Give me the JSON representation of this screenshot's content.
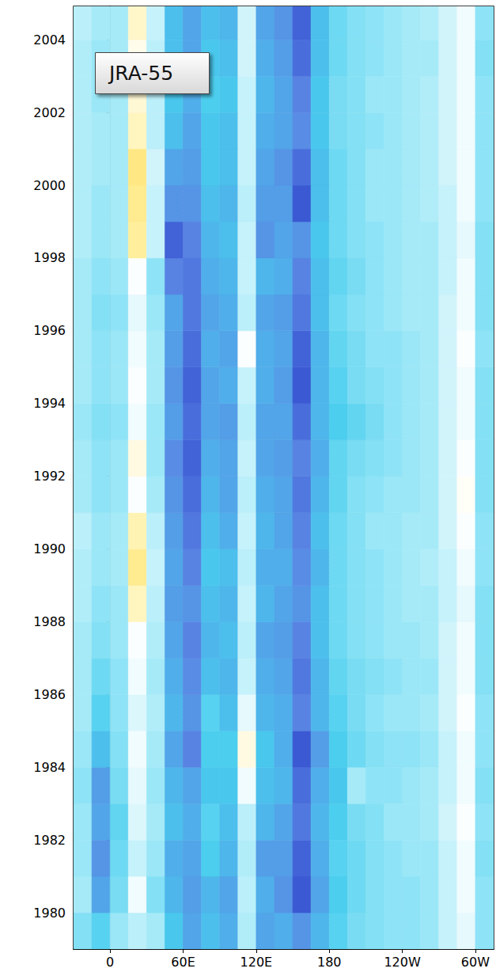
{
  "chart_data": {
    "type": "heatmap",
    "title": "JRA-55",
    "x_bins": [
      -30,
      -15,
      0,
      15,
      30,
      45,
      60,
      75,
      90,
      105,
      120,
      135,
      150,
      165,
      180,
      195,
      210,
      225,
      240,
      255,
      270,
      285,
      300,
      315
    ],
    "y_bins": [
      1979,
      1980,
      1981,
      1982,
      1983,
      1984,
      1985,
      1986,
      1987,
      1988,
      1989,
      1990,
      1991,
      1992,
      1993,
      1994,
      1995,
      1996,
      1997,
      1998,
      1999,
      2000,
      2001,
      2002,
      2003,
      2004,
      2005
    ],
    "cells": [
      [
        -0.8,
        -1.2,
        -0.6,
        -0.3,
        -0.5,
        -1.4,
        -1.8,
        -1.5,
        -1.7,
        -0.4,
        -1.8,
        -1.7,
        -2.0,
        -1.6,
        -1.2,
        -0.9,
        -0.8,
        -0.7,
        -0.7,
        -0.6,
        -0.2,
        0.1,
        -0.7
      ],
      [
        -0.5,
        -1.8,
        -0.9,
        0.2,
        -0.8,
        -1.6,
        -1.9,
        -1.6,
        -1.8,
        -0.3,
        -1.7,
        -2.0,
        -2.6,
        -1.8,
        -1.3,
        -1.0,
        -0.8,
        -0.7,
        -0.7,
        -0.6,
        -0.2,
        0.2,
        -0.7
      ],
      [
        -0.6,
        -2.0,
        -1.0,
        -0.2,
        -0.6,
        -1.7,
        -1.8,
        -1.3,
        -1.6,
        -0.4,
        -1.9,
        -1.9,
        -2.5,
        -1.7,
        -1.2,
        -1.0,
        -0.8,
        -0.7,
        -0.6,
        -0.6,
        -0.2,
        0.2,
        -0.8
      ],
      [
        -0.6,
        -1.8,
        -1.1,
        0.0,
        -0.5,
        -1.5,
        -1.7,
        -1.2,
        -1.5,
        -0.3,
        -1.6,
        -1.8,
        -2.3,
        -1.6,
        -1.3,
        -0.9,
        -0.8,
        -0.6,
        -0.6,
        -0.5,
        -0.1,
        0.3,
        -0.7
      ],
      [
        -0.7,
        -1.9,
        -0.9,
        0.1,
        -0.6,
        -1.6,
        -1.8,
        -1.4,
        -1.4,
        0.2,
        -1.5,
        -1.6,
        -2.4,
        -1.7,
        -1.4,
        -0.5,
        -0.7,
        -0.7,
        -0.6,
        -0.5,
        -0.2,
        0.2,
        -0.8
      ],
      [
        -0.6,
        -1.5,
        -0.8,
        0.2,
        -0.5,
        -1.8,
        -2.2,
        -1.3,
        -1.3,
        0.6,
        -1.4,
        -1.7,
        -2.6,
        -1.9,
        -1.3,
        -1.0,
        -0.8,
        -0.7,
        -0.7,
        -0.6,
        -0.2,
        0.2,
        -0.7
      ],
      [
        -0.5,
        -1.2,
        -0.7,
        0.0,
        -0.4,
        -1.6,
        -2.0,
        -1.2,
        -1.5,
        0.1,
        -1.6,
        -1.7,
        -2.2,
        -1.6,
        -1.2,
        -0.9,
        -0.7,
        -0.6,
        -0.6,
        -0.5,
        -0.1,
        0.3,
        -0.7
      ],
      [
        -0.5,
        -1.0,
        -0.7,
        0.2,
        -0.5,
        -1.7,
        -2.1,
        -1.5,
        -1.6,
        -0.2,
        -1.7,
        -1.8,
        -2.3,
        -1.6,
        -1.1,
        -0.9,
        -0.8,
        -0.7,
        -0.6,
        -0.6,
        -0.1,
        0.2,
        -0.8
      ],
      [
        -0.5,
        -0.8,
        -0.6,
        0.3,
        -0.4,
        -1.8,
        -2.2,
        -1.6,
        -1.5,
        -0.3,
        -1.8,
        -1.9,
        -2.2,
        -1.5,
        -1.0,
        -0.8,
        -0.7,
        -0.6,
        -0.6,
        -0.5,
        -0.1,
        0.2,
        -0.8
      ],
      [
        -0.4,
        -0.7,
        -0.6,
        0.9,
        -0.3,
        -1.9,
        -2.0,
        -1.5,
        -1.6,
        -0.2,
        -1.6,
        -1.8,
        -2.0,
        -1.5,
        -1.0,
        -0.8,
        -0.7,
        -0.6,
        -0.5,
        -0.5,
        -0.2,
        0.1,
        -0.8
      ],
      [
        -0.4,
        -0.6,
        -0.5,
        1.3,
        -0.2,
        -1.8,
        -2.2,
        -1.4,
        -1.5,
        -0.3,
        -1.7,
        -1.7,
        -2.1,
        -1.6,
        -1.0,
        -0.8,
        -0.7,
        -0.6,
        -0.5,
        -0.4,
        -0.2,
        0.2,
        -0.7
      ],
      [
        -0.3,
        -0.6,
        -0.5,
        1.0,
        -0.3,
        -1.9,
        -2.3,
        -1.5,
        -1.7,
        -0.2,
        -1.6,
        -1.8,
        -2.2,
        -1.5,
        -1.0,
        -0.8,
        -0.6,
        -0.6,
        -0.5,
        -0.5,
        -0.1,
        0.3,
        -0.7
      ],
      [
        -0.5,
        -0.7,
        -0.6,
        0.3,
        -0.5,
        -2.0,
        -2.4,
        -1.6,
        -1.8,
        -0.3,
        -1.7,
        -1.8,
        -2.3,
        -1.6,
        -1.1,
        -0.8,
        -0.7,
        -0.6,
        -0.6,
        -0.5,
        -0.1,
        0.4,
        -0.8
      ],
      [
        -0.5,
        -0.7,
        -0.6,
        0.6,
        -0.6,
        -2.1,
        -2.5,
        -1.7,
        -1.8,
        -0.2,
        -1.8,
        -1.9,
        -2.2,
        -1.7,
        -1.1,
        -0.9,
        -0.8,
        -0.7,
        -0.6,
        -0.5,
        -0.1,
        0.3,
        -0.8
      ],
      [
        -0.6,
        -0.8,
        -0.7,
        0.2,
        -0.6,
        -1.9,
        -2.4,
        -1.8,
        -1.9,
        -0.3,
        -1.8,
        -1.8,
        -2.4,
        -1.6,
        -1.3,
        -1.1,
        -0.9,
        -0.7,
        -0.6,
        -0.5,
        -0.1,
        0.2,
        -0.8
      ],
      [
        -0.5,
        -0.7,
        -0.6,
        0.3,
        -0.5,
        -2.0,
        -2.5,
        -1.8,
        -1.7,
        -0.2,
        -1.7,
        -1.9,
        -2.6,
        -1.6,
        -1.2,
        -0.9,
        -0.8,
        -0.7,
        -0.6,
        -0.5,
        -0.1,
        0.2,
        -0.8
      ],
      [
        -0.5,
        -0.7,
        -0.6,
        0.2,
        -0.5,
        -1.9,
        -2.4,
        -1.7,
        -1.8,
        0.3,
        -1.7,
        -1.8,
        -2.5,
        -1.6,
        -1.1,
        -0.9,
        -0.7,
        -0.7,
        -0.6,
        -0.5,
        -0.1,
        0.3,
        -0.7
      ],
      [
        -0.5,
        -0.8,
        -0.7,
        0.1,
        -0.6,
        -1.8,
        -2.3,
        -1.8,
        -1.7,
        -0.3,
        -1.8,
        -1.9,
        -2.3,
        -1.5,
        -1.0,
        -0.8,
        -0.7,
        -0.6,
        -0.5,
        -0.5,
        -0.1,
        0.2,
        -0.8
      ],
      [
        -0.5,
        -0.7,
        -0.6,
        0.3,
        -0.7,
        -2.2,
        -2.3,
        -1.7,
        -1.6,
        -0.2,
        -1.6,
        -1.7,
        -2.2,
        -1.5,
        -1.1,
        -0.9,
        -0.7,
        -0.6,
        -0.5,
        -0.5,
        -0.2,
        0.2,
        -0.8
      ],
      [
        -0.4,
        -0.6,
        -0.5,
        1.2,
        -0.2,
        -2.5,
        -2.2,
        -1.6,
        -1.5,
        -0.2,
        -2.0,
        -1.8,
        -2.0,
        -1.4,
        -1.0,
        -0.8,
        -0.7,
        -0.6,
        -0.5,
        -0.5,
        -0.2,
        0.1,
        -0.8
      ],
      [
        -0.4,
        -0.6,
        -0.5,
        1.3,
        -0.2,
        -2.0,
        -2.0,
        -1.5,
        -1.6,
        -0.3,
        -1.9,
        -1.9,
        -2.6,
        -1.5,
        -1.0,
        -0.8,
        -0.6,
        -0.6,
        -0.5,
        -0.4,
        -0.2,
        0.2,
        -0.7
      ],
      [
        -0.4,
        -0.5,
        -0.5,
        1.4,
        -0.1,
        -1.8,
        -1.9,
        -1.4,
        -1.5,
        -0.2,
        -1.8,
        -2.0,
        -2.4,
        -1.5,
        -1.0,
        -0.8,
        -0.6,
        -0.6,
        -0.5,
        -0.4,
        -0.1,
        0.2,
        -0.7
      ],
      [
        -0.4,
        -0.5,
        -0.5,
        0.9,
        -0.3,
        -1.5,
        -1.8,
        -1.4,
        -1.5,
        -0.2,
        -1.7,
        -1.8,
        -2.1,
        -1.4,
        -0.9,
        -0.8,
        -0.7,
        -0.6,
        -0.5,
        -0.4,
        -0.1,
        0.2,
        -0.7
      ],
      [
        -0.4,
        -0.6,
        -0.5,
        0.7,
        -0.3,
        -1.4,
        -1.7,
        -1.3,
        -1.4,
        -0.2,
        -1.6,
        -1.8,
        -2.2,
        -1.4,
        -0.9,
        -0.8,
        -0.6,
        -0.6,
        -0.5,
        -0.4,
        -0.1,
        0.2,
        -0.7
      ],
      [
        -0.4,
        -0.6,
        -0.5,
        0.5,
        -0.3,
        -1.5,
        -1.8,
        -1.4,
        -1.5,
        -0.1,
        -1.7,
        -1.9,
        -2.4,
        -1.5,
        -1.0,
        -0.8,
        -0.7,
        -0.6,
        -0.5,
        -0.5,
        -0.1,
        0.2,
        -0.8
      ],
      [
        -0.3,
        -0.5,
        -0.5,
        0.8,
        -0.2,
        -1.5,
        -1.8,
        -1.5,
        -1.6,
        -0.1,
        -1.8,
        -2.0,
        -2.5,
        -1.5,
        -1.0,
        -0.8,
        -0.7,
        -0.6,
        -0.5,
        -0.4,
        -0.1,
        0.2,
        -0.7
      ]
    ],
    "color_range": [
      -3,
      2
    ],
    "xlim": [
      -30,
      315
    ],
    "xticks": [
      0,
      {
        "value": 60,
        "label": "60E"
      },
      {
        "value": 120,
        "label": "120E"
      },
      {
        "value": 180,
        "label": "180"
      },
      {
        "value": 240,
        "label": "120W"
      },
      {
        "value": 300,
        "label": "60W"
      }
    ],
    "ylim": [
      1979,
      2004.92
    ],
    "yticks": [
      1980,
      1982,
      1984,
      1986,
      1988,
      1990,
      1992,
      1994,
      1996,
      1998,
      2000,
      2002,
      2004
    ],
    "grid": true
  }
}
